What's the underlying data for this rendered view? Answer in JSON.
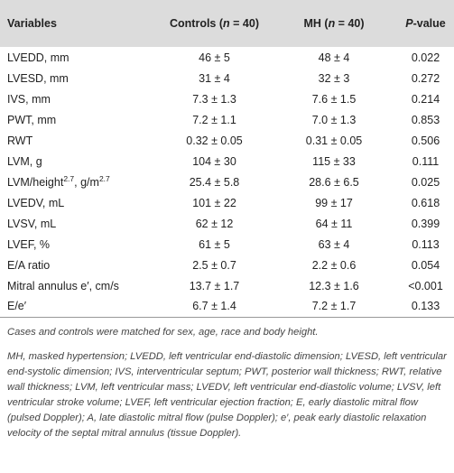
{
  "table": {
    "header": [
      [
        {
          "text": "Variables"
        }
      ],
      [
        {
          "text": "Controls ("
        },
        {
          "text": "n",
          "italic": true
        },
        {
          "text": " = 40)"
        }
      ],
      [
        {
          "text": "MH ("
        },
        {
          "text": "n",
          "italic": true
        },
        {
          "text": " = 40)"
        }
      ],
      [
        {
          "text": "P",
          "italic": true
        },
        {
          "text": "-value"
        }
      ]
    ],
    "rows": [
      [
        "LVEDD, mm",
        "46 ± 5",
        "48 ± 4",
        "0.022"
      ],
      [
        "LVESD, mm",
        "31 ± 4",
        "32 ± 3",
        "0.272"
      ],
      [
        "IVS, mm",
        "7.3 ± 1.3",
        "7.6 ± 1.5",
        "0.214"
      ],
      [
        "PWT, mm",
        "7.2 ± 1.1",
        "7.0 ± 1.3",
        "0.853"
      ],
      [
        "RWT",
        "0.32 ± 0.05",
        "0.31 ± 0.05",
        "0.506"
      ],
      [
        "LVM, g",
        "104 ± 30",
        "115 ± 33",
        "0.111"
      ],
      [
        [
          {
            "text": "LVM/height"
          },
          {
            "text": "2.7",
            "sup": true
          },
          {
            "text": ", g/m"
          },
          {
            "text": "2.7",
            "sup": true
          }
        ],
        "25.4 ± 5.8",
        "28.6 ± 6.5",
        "0.025"
      ],
      [
        "LVEDV, mL",
        "101 ± 22",
        "99 ± 17",
        "0.618"
      ],
      [
        "LVSV, mL",
        "62 ± 12",
        "64 ± 11",
        "0.399"
      ],
      [
        "LVEF, %",
        "61 ± 5",
        "63 ± 4",
        "0.113"
      ],
      [
        "E/A ratio",
        "2.5 ± 0.7",
        "2.2 ± 0.6",
        "0.054"
      ],
      [
        "Mitral annulus e′, cm/s",
        "13.7 ± 1.7",
        "12.3 ± 1.6",
        "<0.001"
      ],
      [
        "E/e′",
        "6.7 ± 1.4",
        "7.2 ± 1.7",
        "0.133"
      ]
    ]
  },
  "footnotes": [
    "Cases and controls were matched for sex, age, race and body height.",
    "MH, masked hypertension; LVEDD, left ventricular end-diastolic dimension; LVESD, left ventricular end-systolic dimension; IVS, interventricular septum; PWT, posterior wall thickness; RWT, relative wall thickness; LVM, left ventricular mass; LVEDV, left ventricular end-diastolic volume; LVSV, left ventricular stroke volume; LVEF, left ventricular ejection fraction; E, early diastolic mitral flow (pulsed Doppler); A, late diastolic mitral flow (pulse Doppler); e′, peak early diastolic relaxation velocity of the septal mitral annulus (tissue Doppler)."
  ]
}
